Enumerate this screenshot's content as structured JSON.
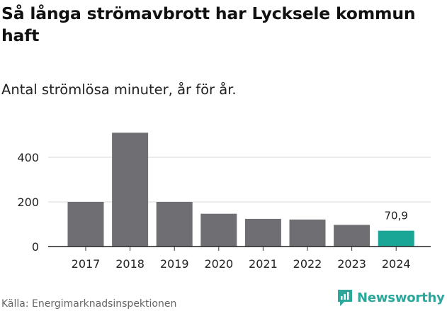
{
  "header": {
    "title": "Så långa strömavbrott har Lycksele kommun haft",
    "subtitle": "Antal strömlösa minuter, år för år."
  },
  "footer": {
    "source": "Källa: Energimarknadsinspektionen",
    "brand": "Newsworthy"
  },
  "colors": {
    "bar": "#6f6e73",
    "highlight": "#1aa697",
    "grid": "#d9d9d9",
    "brand": "#2ca79b"
  },
  "chart_data": {
    "type": "bar",
    "title": "Så långa strömavbrott har Lycksele kommun haft",
    "subtitle": "Antal strömlösa minuter, år för år.",
    "categories": [
      "2017",
      "2018",
      "2019",
      "2020",
      "2021",
      "2022",
      "2023",
      "2024"
    ],
    "values": [
      200,
      510,
      200,
      147,
      124,
      121,
      97,
      70.9
    ],
    "highlight_index": 7,
    "data_labels": [
      {
        "index": 7,
        "text": "70,9"
      }
    ],
    "yticks": [
      0,
      200,
      400
    ],
    "ylim": [
      0,
      560
    ],
    "xlabel": "",
    "ylabel": "",
    "grid": true
  }
}
